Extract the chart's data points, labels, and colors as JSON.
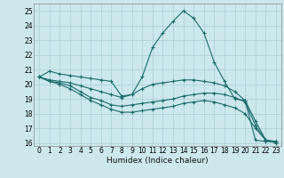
{
  "title": "",
  "xlabel": "Humidex (Indice chaleur)",
  "background_color": "#cce8ec",
  "grid_color": "#aacdd4",
  "line_color": "#1a6b6b",
  "xlim": [
    -0.5,
    23.5
  ],
  "ylim": [
    15.8,
    25.5
  ],
  "yticks": [
    16,
    17,
    18,
    19,
    20,
    21,
    22,
    23,
    24,
    25
  ],
  "xticks": [
    0,
    1,
    2,
    3,
    4,
    5,
    6,
    7,
    8,
    9,
    10,
    11,
    12,
    13,
    14,
    15,
    16,
    17,
    18,
    19,
    20,
    21,
    22,
    23
  ],
  "series": [
    [
      20.5,
      20.9,
      20.7,
      20.6,
      20.5,
      20.4,
      20.3,
      20.2,
      19.2,
      19.3,
      20.5,
      22.5,
      23.5,
      24.3,
      25.0,
      24.5,
      23.5,
      21.5,
      20.2,
      19.0,
      18.9,
      16.2,
      16.1,
      16.1
    ],
    [
      20.5,
      20.3,
      20.2,
      20.1,
      19.9,
      19.7,
      19.5,
      19.3,
      19.1,
      19.3,
      19.7,
      20.0,
      20.1,
      20.2,
      20.3,
      20.3,
      20.2,
      20.1,
      19.9,
      19.5,
      18.9,
      17.5,
      16.2,
      16.1
    ],
    [
      20.5,
      20.2,
      20.1,
      19.9,
      19.5,
      19.1,
      18.9,
      18.6,
      18.5,
      18.6,
      18.7,
      18.8,
      18.9,
      19.0,
      19.2,
      19.3,
      19.4,
      19.4,
      19.3,
      19.1,
      18.8,
      17.2,
      16.2,
      16.1
    ],
    [
      20.5,
      20.2,
      20.0,
      19.7,
      19.3,
      18.9,
      18.6,
      18.3,
      18.1,
      18.1,
      18.2,
      18.3,
      18.4,
      18.5,
      18.7,
      18.8,
      18.9,
      18.8,
      18.6,
      18.4,
      18.0,
      17.0,
      16.2,
      16.0
    ]
  ],
  "tick_fontsize": 5.5,
  "xlabel_fontsize": 6.5
}
